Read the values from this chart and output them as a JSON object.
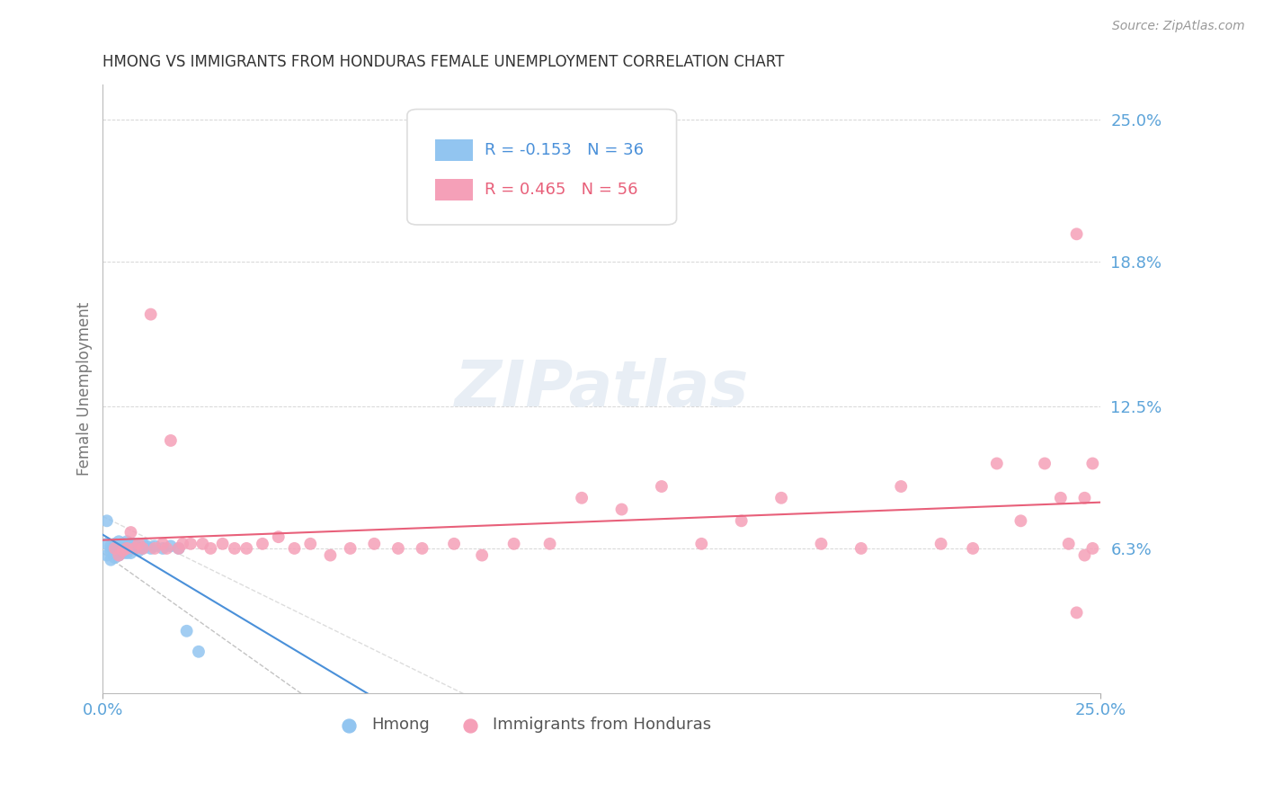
{
  "title": "HMONG VS IMMIGRANTS FROM HONDURAS FEMALE UNEMPLOYMENT CORRELATION CHART",
  "source": "Source: ZipAtlas.com",
  "ylabel": "Female Unemployment",
  "xlim": [
    0.0,
    0.25
  ],
  "ylim": [
    0.0,
    0.265
  ],
  "ytick_values": [
    0.063,
    0.125,
    0.188,
    0.25
  ],
  "ytick_labels": [
    "6.3%",
    "12.5%",
    "18.8%",
    "25.0%"
  ],
  "xtick_values": [
    0.0,
    0.25
  ],
  "xtick_labels": [
    "0.0%",
    "25.0%"
  ],
  "hmong_R": -0.153,
  "hmong_N": 36,
  "honduras_R": 0.465,
  "honduras_N": 56,
  "hmong_color": "#92c5f0",
  "honduras_color": "#f5a0b8",
  "hmong_line_color": "#4a90d9",
  "honduras_line_color": "#e8607a",
  "background_color": "#ffffff",
  "grid_color": "#cccccc",
  "title_color": "#333333",
  "axis_label_color": "#5ba3d9",
  "legend_border_color": "#dddddd",
  "watermark_color": "#e8eef5",
  "hmong_points_x": [
    0.001,
    0.001,
    0.001,
    0.002,
    0.002,
    0.002,
    0.003,
    0.003,
    0.003,
    0.003,
    0.004,
    0.004,
    0.004,
    0.005,
    0.005,
    0.005,
    0.006,
    0.006,
    0.006,
    0.007,
    0.007,
    0.007,
    0.008,
    0.008,
    0.009,
    0.009,
    0.01,
    0.01,
    0.011,
    0.012,
    0.013,
    0.015,
    0.017,
    0.019,
    0.021,
    0.024
  ],
  "hmong_points_y": [
    0.065,
    0.075,
    0.06,
    0.064,
    0.062,
    0.058,
    0.065,
    0.063,
    0.061,
    0.059,
    0.066,
    0.063,
    0.06,
    0.065,
    0.063,
    0.061,
    0.066,
    0.063,
    0.061,
    0.065,
    0.063,
    0.061,
    0.065,
    0.063,
    0.064,
    0.062,
    0.065,
    0.063,
    0.064,
    0.063,
    0.064,
    0.063,
    0.064,
    0.063,
    0.027,
    0.018
  ],
  "honduras_points_x": [
    0.003,
    0.004,
    0.005,
    0.006,
    0.007,
    0.008,
    0.009,
    0.01,
    0.012,
    0.013,
    0.015,
    0.016,
    0.017,
    0.019,
    0.02,
    0.022,
    0.025,
    0.027,
    0.03,
    0.033,
    0.036,
    0.04,
    0.044,
    0.048,
    0.052,
    0.057,
    0.062,
    0.068,
    0.074,
    0.08,
    0.088,
    0.095,
    0.103,
    0.112,
    0.12,
    0.13,
    0.14,
    0.15,
    0.16,
    0.17,
    0.18,
    0.19,
    0.2,
    0.21,
    0.218,
    0.224,
    0.23,
    0.236,
    0.24,
    0.244,
    0.246,
    0.248,
    0.246,
    0.244,
    0.242,
    0.248
  ],
  "honduras_points_y": [
    0.063,
    0.06,
    0.062,
    0.063,
    0.07,
    0.063,
    0.065,
    0.063,
    0.165,
    0.063,
    0.065,
    0.063,
    0.11,
    0.063,
    0.065,
    0.065,
    0.065,
    0.063,
    0.065,
    0.063,
    0.063,
    0.065,
    0.068,
    0.063,
    0.065,
    0.06,
    0.063,
    0.065,
    0.063,
    0.063,
    0.065,
    0.06,
    0.065,
    0.065,
    0.085,
    0.08,
    0.09,
    0.065,
    0.075,
    0.085,
    0.065,
    0.063,
    0.09,
    0.065,
    0.063,
    0.1,
    0.075,
    0.1,
    0.085,
    0.035,
    0.06,
    0.1,
    0.085,
    0.2,
    0.065,
    0.063
  ]
}
